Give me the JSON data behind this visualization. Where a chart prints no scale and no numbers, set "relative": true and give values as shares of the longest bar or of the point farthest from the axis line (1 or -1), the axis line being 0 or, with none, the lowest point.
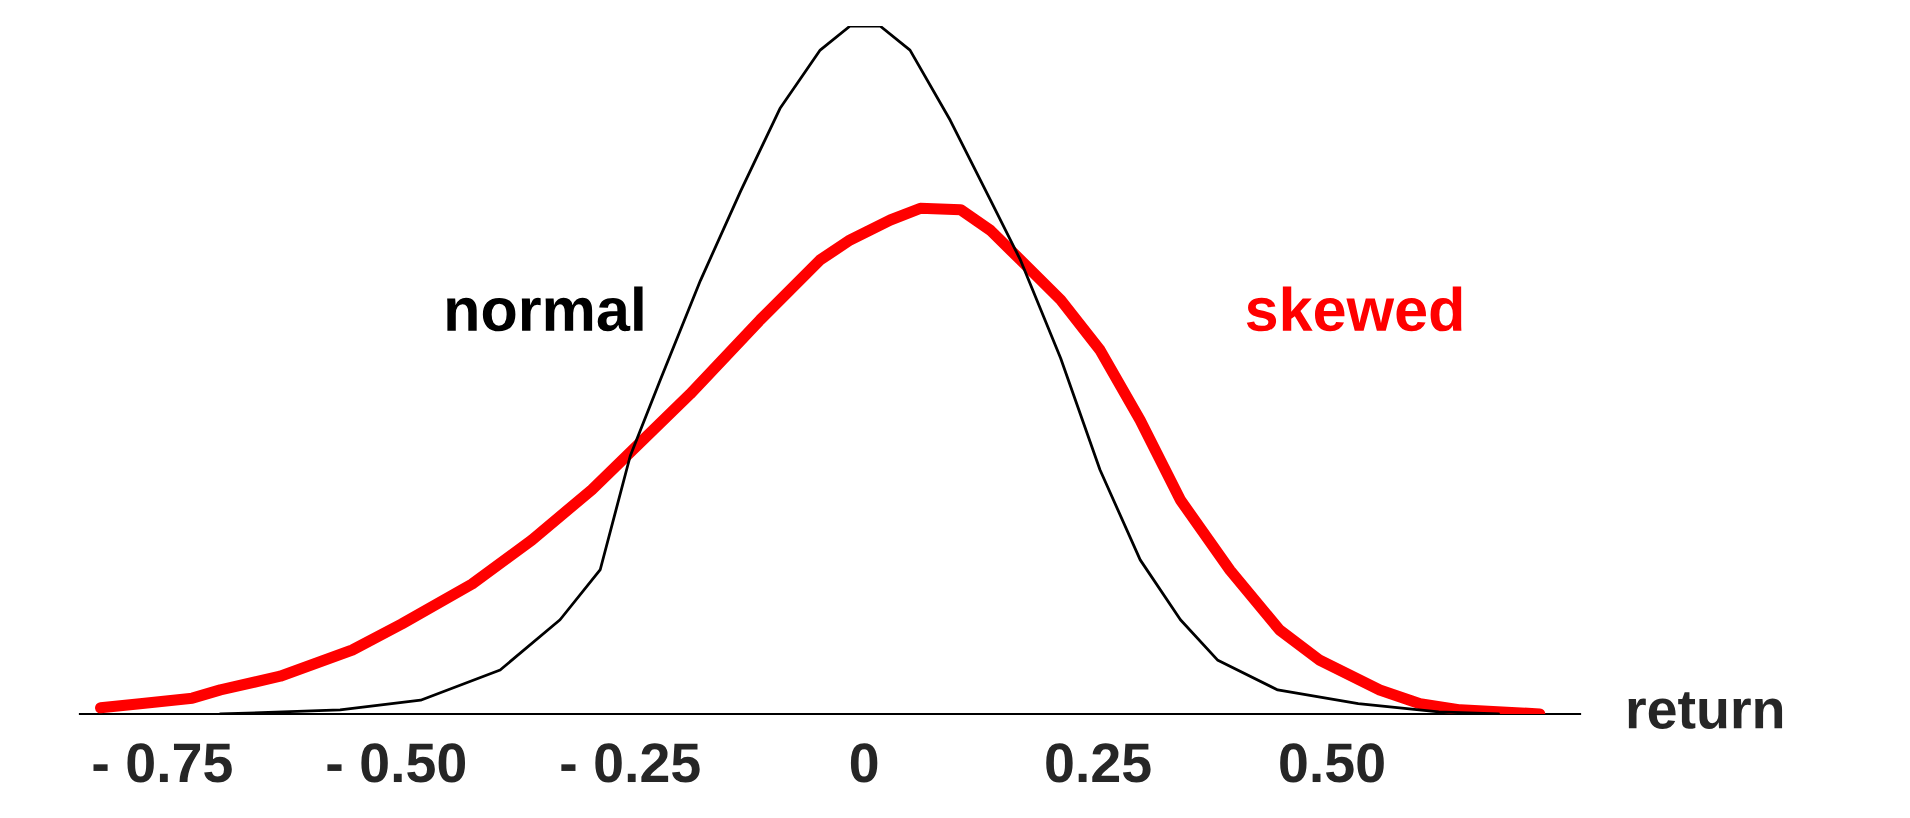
{
  "chart_data": {
    "type": "line",
    "relative": true,
    "xlabel": "return",
    "xlim": [
      -0.838,
      0.765
    ],
    "xticks": [
      {
        "value": -0.75,
        "label": "- 0.75"
      },
      {
        "value": -0.5,
        "label": "- 0.50"
      },
      {
        "value": -0.25,
        "label": "- 0.25"
      },
      0,
      0.25,
      {
        "value": 0.5,
        "label": "0.50"
      }
    ],
    "grid": false,
    "legend": false,
    "marker": "none",
    "series": [
      {
        "name": "normal",
        "color": "#000000",
        "x": [
          -0.688,
          -0.56,
          -0.474,
          -0.389,
          -0.325,
          -0.282,
          -0.25,
          -0.218,
          -0.175,
          -0.132,
          -0.09,
          -0.047,
          -0.015,
          0.017,
          0.049,
          0.092,
          0.135,
          0.167,
          0.21,
          0.252,
          0.295,
          0.338,
          0.378,
          0.442,
          0.528,
          0.614,
          0.678
        ],
        "values": [
          0.0,
          0.006,
          0.02,
          0.064,
          0.137,
          0.21,
          0.375,
          0.485,
          0.63,
          0.76,
          0.88,
          0.965,
          1.0,
          1.0,
          0.965,
          0.863,
          0.747,
          0.66,
          0.517,
          0.355,
          0.224,
          0.137,
          0.078,
          0.035,
          0.015,
          0.003,
          0.0
        ]
      },
      {
        "name": "skewed",
        "color": "#ff0000",
        "x": [
          -0.816,
          -0.774,
          -0.718,
          -0.688,
          -0.624,
          -0.547,
          -0.494,
          -0.419,
          -0.355,
          -0.291,
          -0.254,
          -0.186,
          -0.111,
          -0.047,
          -0.015,
          0.028,
          0.06,
          0.103,
          0.135,
          0.167,
          0.21,
          0.252,
          0.295,
          0.338,
          0.391,
          0.444,
          0.487,
          0.551,
          0.594,
          0.637,
          0.722
        ],
        "values": [
          0.009,
          0.015,
          0.023,
          0.035,
          0.055,
          0.093,
          0.131,
          0.189,
          0.253,
          0.326,
          0.375,
          0.465,
          0.573,
          0.66,
          0.689,
          0.718,
          0.735,
          0.733,
          0.703,
          0.66,
          0.602,
          0.529,
          0.427,
          0.311,
          0.209,
          0.122,
          0.078,
          0.035,
          0.015,
          0.006,
          0.0
        ]
      }
    ]
  }
}
